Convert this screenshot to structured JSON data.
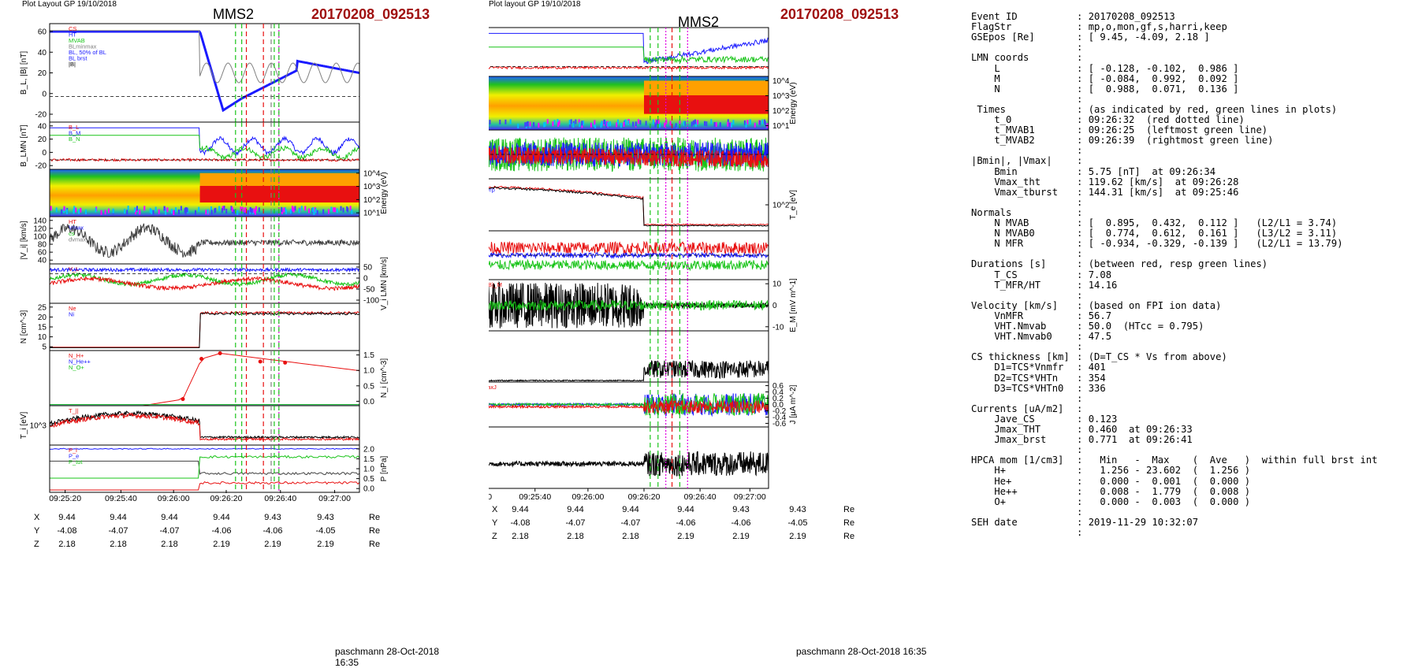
{
  "left_plot": {
    "layout_label": "Plot Layout GP 19/10/2018",
    "spacecraft": "MMS2",
    "event": "20170208_092513",
    "footer": "paschmann 28-Oct-2018 16:35",
    "time_ticks": [
      "09:25:20",
      "09:25:40",
      "09:26:00",
      "09:26:20",
      "09:26:40",
      "09:27:00"
    ],
    "ephemeris": {
      "rows": [
        {
          "label": "X",
          "values": [
            "9.44",
            "9.44",
            "9.44",
            "9.44",
            "9.43",
            "9.43"
          ],
          "unit": "Re"
        },
        {
          "label": "Y",
          "values": [
            "-4.08",
            "-4.07",
            "-4.07",
            "-4.06",
            "-4.06",
            "-4.05"
          ],
          "unit": "Re"
        },
        {
          "label": "Z",
          "values": [
            "2.18",
            "2.18",
            "2.18",
            "2.19",
            "2.19",
            "2.19"
          ],
          "unit": "Re"
        }
      ]
    },
    "panels": [
      {
        "ylabel": "B_L, |B| [nT]",
        "yticks": [
          "60",
          "40",
          "20",
          "0",
          "-20"
        ],
        "legend": [
          "CS",
          "HT",
          "MVAB",
          "BLminmax",
          "BL, 50% of BL",
          "BL brst",
          "|B|"
        ]
      },
      {
        "ylabel": "B_LMN [nT]",
        "yticks": [
          "40",
          "20",
          "0",
          "-20"
        ],
        "legend": [
          "B_L",
          "B_M",
          "B_N"
        ]
      },
      {
        "ylabel": "Energy (eV)",
        "yticks": [
          "10^4",
          "10^3",
          "10^2",
          "10^1"
        ],
        "legend": []
      },
      {
        "ylabel": "|V_i| [km/s]",
        "yticks": [
          "140",
          "120",
          "100",
          "80",
          "60",
          "40"
        ],
        "legend": [
          "HT",
          "Vmax",
          "cs",
          "dvmax"
        ]
      },
      {
        "ylabel": "V_i LMN [km/s]",
        "yticks": [
          "50",
          "0",
          "-50",
          "-100"
        ],
        "legend": [
          "V_L"
        ]
      },
      {
        "ylabel": "N [cm^-3]",
        "yticks": [
          "25",
          "20",
          "15",
          "10",
          "5"
        ],
        "legend": [
          "Ne",
          "Ni"
        ]
      },
      {
        "ylabel": "N_i [cm^-3]",
        "yticks": [
          "1.5",
          "1.0",
          "0.5",
          "0.0"
        ],
        "legend": [
          "N_H+",
          "N_He++",
          "N_O+"
        ]
      },
      {
        "ylabel": "T_i [eV]",
        "yticks": [
          "10^3"
        ],
        "legend": [
          "T_||"
        ]
      },
      {
        "ylabel": "P [nPa]",
        "yticks": [
          "2.0",
          "1.5",
          "1.0",
          "0.5",
          "0.0"
        ],
        "legend": [
          "P_i",
          "P_e",
          "P_tot"
        ]
      }
    ]
  },
  "mid_plot": {
    "layout_label": "Plot layout GP 19/10/2018",
    "spacecraft": "MMS2",
    "event": "20170208_092513",
    "footer": "paschmann 28-Oct-2018 16:35",
    "time_ticks": [
      "09:25:20",
      "09:25:40",
      "09:26:00",
      "09:26:20",
      "09:26:40",
      "09:27:00"
    ],
    "ephemeris": {
      "rows": [
        {
          "label": "X",
          "values": [
            "9.44",
            "9.44",
            "9.44",
            "9.44",
            "9.43",
            "9.43"
          ],
          "unit": "Re"
        },
        {
          "label": "Y",
          "values": [
            "-4.08",
            "-4.07",
            "-4.07",
            "-4.06",
            "-4.06",
            "-4.05"
          ],
          "unit": "Re"
        },
        {
          "label": "Z",
          "values": [
            "2.18",
            "2.18",
            "2.18",
            "2.19",
            "2.19",
            "2.19"
          ],
          "unit": "Re"
        }
      ]
    },
    "panels": [
      {
        "ylabel": "B_LMN [nT]",
        "yticks": [
          "40",
          "20",
          "0",
          "-20"
        ],
        "legend": [
          "B_L",
          "B_M",
          "B_N"
        ]
      },
      {
        "ylabel": "Energy (eV)",
        "yticks": [
          "10^4",
          "10^3",
          "10^2",
          "10^1"
        ],
        "legend": []
      },
      {
        "ylabel": "V_e LMN [km/s]",
        "yticks": [
          "200",
          "0",
          "-200"
        ],
        "legend": [
          "V_L"
        ]
      },
      {
        "ylabel": "T_e [eV]",
        "yticks": [
          "10^2"
        ],
        "legend": [
          "T_||",
          "T_perp"
        ]
      },
      {
        "ylabel": "E_LMN [mV m^-1]",
        "yticks": [
          "10",
          "5",
          "0",
          "-5",
          "-10"
        ],
        "legend": [
          "E_L",
          "E_M",
          "E_N"
        ]
      },
      {
        "ylabel": "E_M [mV m^-1]",
        "yticks": [
          "10",
          "0",
          "-10"
        ],
        "legend": [
          "(VexB)_M",
          "E_M"
        ]
      },
      {
        "ylabel": "|J| [µA m^-2]",
        "yticks": [
          "0.6",
          "0.4",
          "0.2",
          "0.0"
        ],
        "legend": [
          "|J|"
        ]
      },
      {
        "ylabel": "J [µA m^-2]",
        "yticks": [
          "0.6",
          "0.4",
          "0.2",
          "0.0",
          "-0.2",
          "-0.4",
          "-0.6"
        ],
        "legend": [
          "J_maxJ",
          "J_L",
          "J_M"
        ]
      },
      {
        "ylabel": "J*E' [nW m^-3]",
        "yticks": [
          "1.0",
          "0.5",
          "0.0",
          "-0.5"
        ],
        "legend": [
          "J*E'"
        ]
      }
    ]
  },
  "summary": {
    "lines": [
      {
        "k": "Event ID",
        "v": "20170208_092513"
      },
      {
        "k": "FlagStr",
        "v": "mp,o,mon,gf,s,harri,keep"
      },
      {
        "k": "GSEpos [Re]",
        "v": "[ 9.45, -4.09, 2.18 ]"
      },
      {
        "k": "",
        "v": ""
      },
      {
        "k": "LMN coords",
        "v": ""
      },
      {
        "k": "    L",
        "v": "[ -0.128, -0.102,  0.986 ]"
      },
      {
        "k": "    M",
        "v": "[ -0.084,  0.992,  0.092 ]"
      },
      {
        "k": "    N",
        "v": "[  0.988,  0.071,  0.136 ]"
      },
      {
        "k": "",
        "v": ""
      },
      {
        "k": " Times",
        "v": "(as indicated by red, green lines in plots)"
      },
      {
        "k": "    t_0",
        "v": "09:26:32  (red dotted line)"
      },
      {
        "k": "    t_MVAB1",
        "v": "09:26:25  (leftmost green line)"
      },
      {
        "k": "    t_MVAB2",
        "v": "09:26:39  (rightmost green line)"
      },
      {
        "k": "",
        "v": ""
      },
      {
        "k": "|Bmin|, |Vmax|",
        "v": ""
      },
      {
        "k": "    Bmin",
        "v": "5.75 [nT]  at 09:26:34"
      },
      {
        "k": "    Vmax_tht",
        "v": "119.62 [km/s]  at 09:26:28"
      },
      {
        "k": "    Vmax_tburst",
        "v": "144.31 [km/s]  at 09:25:46"
      },
      {
        "k": "",
        "v": ""
      },
      {
        "k": "Normals",
        "v": ""
      },
      {
        "k": "    N MVAB",
        "v": "[  0.895,  0.432,  0.112 ]   (L2/L1 = 3.74)"
      },
      {
        "k": "    N MVAB0",
        "v": "[  0.774,  0.612,  0.161 ]   (L3/L2 = 3.11)"
      },
      {
        "k": "    N MFR",
        "v": "[ -0.934, -0.329, -0.139 ]   (L2/L1 = 13.79)"
      },
      {
        "k": "",
        "v": ""
      },
      {
        "k": "Durations [s]",
        "v": "(between red, resp green lines)"
      },
      {
        "k": "    T_CS",
        "v": "7.08"
      },
      {
        "k": "    T_MFR/HT",
        "v": "14.16"
      },
      {
        "k": "",
        "v": ""
      },
      {
        "k": "Velocity [km/s]",
        "v": "(based on FPI ion data)"
      },
      {
        "k": "    VnMFR",
        "v": "56.7"
      },
      {
        "k": "    VHT.Nmvab",
        "v": "50.0  (HTcc = 0.795)"
      },
      {
        "k": "    VHT.Nmvab0",
        "v": "47.5"
      },
      {
        "k": "",
        "v": ""
      },
      {
        "k": "CS thickness [km]",
        "v": "(D=T_CS * Vs from above)"
      },
      {
        "k": "    D1=TCS*Vnmfr",
        "v": "401"
      },
      {
        "k": "    D2=TCS*VHTn",
        "v": "354"
      },
      {
        "k": "    D3=TCS*VHTn0",
        "v": "336"
      },
      {
        "k": "",
        "v": ""
      },
      {
        "k": "Currents [uA/m2]",
        "v": ""
      },
      {
        "k": "    Jave_CS",
        "v": "0.123"
      },
      {
        "k": "    Jmax_THT",
        "v": "0.460  at 09:26:33"
      },
      {
        "k": "    Jmax_brst",
        "v": "0.771  at 09:26:41"
      },
      {
        "k": "",
        "v": ""
      },
      {
        "k": "HPCA mom [1/cm3]",
        "v": "  Min   -  Max    (  Ave   )  within full brst int"
      },
      {
        "k": "    H+",
        "v": "  1.256 - 23.602  (  1.256 )"
      },
      {
        "k": "    He+",
        "v": "  0.000 -  0.001  (  0.000 )"
      },
      {
        "k": "    He++",
        "v": "  0.008 -  1.779  (  0.008 )"
      },
      {
        "k": "    O+",
        "v": "  0.000 -  0.003  (  0.000 )"
      },
      {
        "k": "",
        "v": ""
      },
      {
        "k": "SEH date",
        "v": "2019-11-29 10:32:07"
      },
      {
        "k": "",
        "v": ""
      }
    ]
  },
  "chart_data": [
    {
      "type": "line",
      "title": "MMS2 20170208_092513",
      "xlabel": "time",
      "x": [
        "09:25:20",
        "09:25:40",
        "09:26:00",
        "09:26:20",
        "09:26:40",
        "09:27:00"
      ],
      "series": [
        {
          "name": "B_L",
          "values": [
            55,
            55,
            55,
            55,
            -10,
            20
          ]
        },
        {
          "name": "N_i",
          "values": [
            2,
            2,
            2,
            2,
            18,
            22
          ]
        },
        {
          "name": "N He++ (cm^-3)",
          "x": [
            "09:26:24",
            "09:26:31",
            "09:26:39",
            "09:26:50",
            "09:26:59"
          ],
          "values": [
            0.2,
            1.4,
            1.6,
            1.35,
            1.3
          ]
        }
      ],
      "markers": {
        "t_0": "09:26:32",
        "t_MVAB1": "09:26:25",
        "t_MVAB2": "09:26:39"
      }
    }
  ],
  "colors": {
    "event": "#a01010",
    "blue": "#1a1aff",
    "green": "#19c419",
    "red": "#e81010",
    "magenta": "#e000e0",
    "gray": "#808080"
  }
}
